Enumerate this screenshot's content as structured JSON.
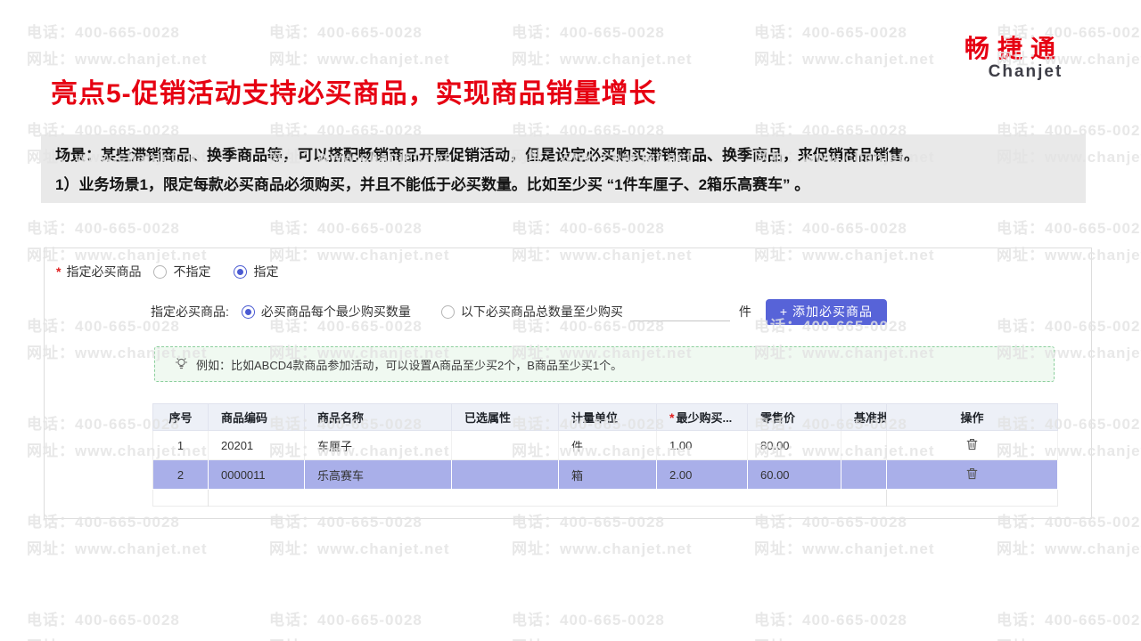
{
  "watermark": {
    "phone": "电话：400-665-0028",
    "site": "网址：www.chanjet.net"
  },
  "logo": {
    "cn": "畅捷通",
    "en": "Chanjet"
  },
  "title": "亮点5-促销活动支持必买商品，实现商品销量增长",
  "scenario": {
    "label": "场景：",
    "line1": "某些滞销商品、换季商品等，可以搭配畅销商品开展促销活动，但是设定必买购买滞销商品、换季商品，来促销商品销售。",
    "line2": "1）业务场景1，限定每款必买商品必须购买，并且不能低于必买数量。比如至少买 “1件车厘子、2箱乐高赛车” 。"
  },
  "form": {
    "required_mark": "*",
    "field1": {
      "label": "指定必买商品",
      "options": [
        {
          "label": "不指定",
          "selected": false
        },
        {
          "label": "指定",
          "selected": true
        }
      ]
    },
    "field2": {
      "label": "指定必买商品:",
      "options": [
        {
          "label": "必买商品每个最少购买数量",
          "selected": true
        },
        {
          "label": "以下必买商品总数量至少购买",
          "selected": false
        }
      ]
    },
    "quantity_value": "",
    "unit": "件",
    "add_button": "+ 添加必买商品",
    "tip": "例如：比如ABCD4款商品参加活动，可以设置A商品至少买2个，B商品至少买1个。"
  },
  "table": {
    "required_mark": "*",
    "headers": [
      "序号",
      "商品编码",
      "商品名称",
      "已选属性",
      "计量单位",
      "最少购买...",
      "零售价",
      "基准批",
      "操作"
    ],
    "rows": [
      {
        "seq": "1",
        "code": "20201",
        "name": "车厘子",
        "attrs": "",
        "unit": "件",
        "min_qty": "1.00",
        "retail_price": "80.00",
        "base_price": "",
        "selected": false
      },
      {
        "seq": "2",
        "code": "0000011",
        "name": "乐高赛车",
        "attrs": "",
        "unit": "箱",
        "min_qty": "2.00",
        "retail_price": "60.00",
        "base_price": "",
        "selected": true
      }
    ]
  },
  "colors": {
    "accent-red": "#e60012",
    "logo-dark": "#3e3e47",
    "button-blue": "#5763d8",
    "radio-blue": "#4a5ad2",
    "row-highlight": "#a9afe9",
    "tip-bg": "#f0f9f1",
    "tip-border": "#8ccf9d",
    "table-header-bg": "#edf0f7",
    "scenario-bg": "#e9e9e9",
    "watermark-gray": "#e3e3e3",
    "star-red": "#e02020"
  }
}
